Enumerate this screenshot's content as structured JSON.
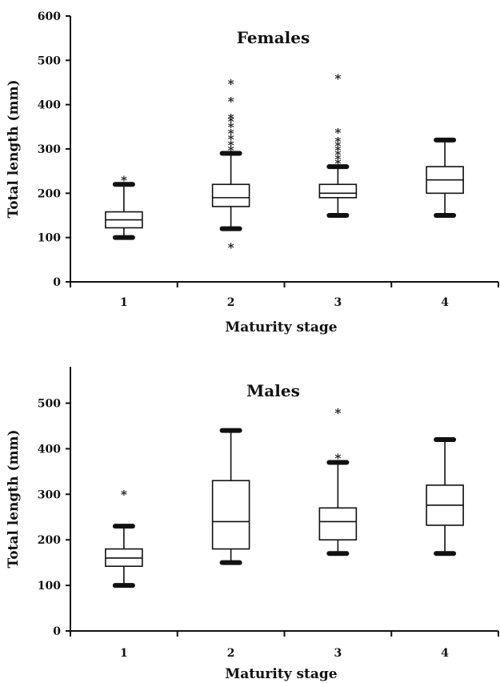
{
  "chart_data": [
    {
      "type": "box",
      "title": "Females",
      "xlabel": "Maturity stage",
      "ylabel": "Total length (mm)",
      "ylim": [
        0,
        600
      ],
      "yticks": [
        0,
        100,
        200,
        300,
        400,
        500,
        600
      ],
      "categories": [
        "1",
        "2",
        "3",
        "4"
      ],
      "boxes": [
        {
          "category": "1",
          "whisker_low": 100,
          "q1": 122,
          "median": 140,
          "q3": 158,
          "whisker_high": 220,
          "outliers": [
            232
          ]
        },
        {
          "category": "2",
          "whisker_low": 120,
          "q1": 170,
          "median": 190,
          "q3": 220,
          "whisker_high": 290,
          "outliers": [
            80,
            300,
            312,
            325,
            338,
            352,
            365,
            372,
            410,
            450
          ]
        },
        {
          "category": "3",
          "whisker_low": 150,
          "q1": 190,
          "median": 200,
          "q3": 220,
          "whisker_high": 260,
          "outliers": [
            270,
            280,
            290,
            300,
            310,
            320,
            340,
            462
          ]
        },
        {
          "category": "4",
          "whisker_low": 150,
          "q1": 200,
          "median": 230,
          "q3": 260,
          "whisker_high": 320,
          "outliers": []
        }
      ]
    },
    {
      "type": "box",
      "title": "Males",
      "xlabel": "Maturity stage",
      "ylabel": "Total length (mm)",
      "ylim": [
        0,
        580
      ],
      "yticks": [
        0,
        100,
        200,
        300,
        400,
        500
      ],
      "categories": [
        "1",
        "2",
        "3",
        "4"
      ],
      "boxes": [
        {
          "category": "1",
          "whisker_low": 100,
          "q1": 142,
          "median": 160,
          "q3": 180,
          "whisker_high": 230,
          "outliers": [
            302
          ]
        },
        {
          "category": "2",
          "whisker_low": 150,
          "q1": 180,
          "median": 240,
          "q3": 330,
          "whisker_high": 440,
          "outliers": []
        },
        {
          "category": "3",
          "whisker_low": 170,
          "q1": 200,
          "median": 240,
          "q3": 270,
          "whisker_high": 370,
          "outliers": [
            382,
            482
          ]
        },
        {
          "category": "4",
          "whisker_low": 170,
          "q1": 232,
          "median": 276,
          "q3": 320,
          "whisker_high": 420,
          "outliers": []
        }
      ]
    }
  ]
}
